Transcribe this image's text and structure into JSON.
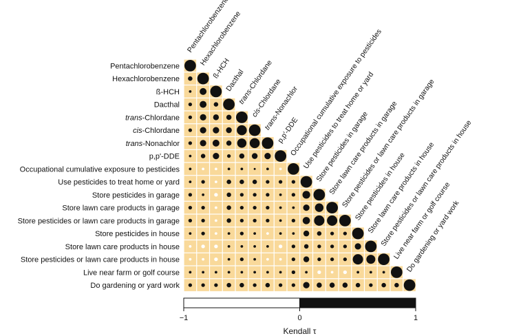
{
  "chart_data": {
    "type": "correlation-matrix",
    "layout": "lower-triangle",
    "variables": [
      "Pentachlorobenzene",
      "Hexachlorobenzene",
      "ß-HCH",
      "Dacthal",
      "trans-Chlordane",
      "cis-Chlordane",
      "trans-Nonachlor",
      "p,p'-DDE",
      "Occupational cumulative exposure to pesticides",
      "Use pesticides to treat home or yard",
      "Store pesticides in garage",
      "Store lawn care products in garage",
      "Store pesticides or lawn care products in garage",
      "Store pesticides in house",
      "Store lawn care products in house",
      "Store pesticides or lawn care products in house",
      "Live near farm or golf course",
      "Do gardening or yard work"
    ],
    "italic_prefixes": [
      "",
      "",
      "",
      "",
      "trans",
      "cis",
      "trans",
      "",
      "",
      "",
      "",
      "",
      "",
      "",
      "",
      "",
      "",
      ""
    ],
    "column_labels": [
      "Pentachlorobenzene",
      "Hexachlorobenzene",
      "ß-HCH",
      "Dacthal",
      "trans-Chlordane",
      "cis-Chlordane",
      "trans-Nonachlor",
      "p,p'-DDE",
      "Occupational cumulative exposure to pesticides",
      "Use pesticides to treat home or yard",
      "Store pesticides in garage",
      "Store lawn care products in garage",
      "Store pesticides or lawn care products in garage",
      "Store pesticides in house",
      "Store lawn care products in house",
      "Store pesticides or lawn care products in house",
      "Live near farm or golf course",
      "Do gardening or yard work"
    ],
    "tau_lower_triangle": [
      [
        1.0
      ],
      [
        0.15,
        1.0
      ],
      [
        0.05,
        0.35,
        1.0
      ],
      [
        0.1,
        0.35,
        0.15,
        1.0
      ],
      [
        0.1,
        0.3,
        0.25,
        0.2,
        1.0
      ],
      [
        0.1,
        0.3,
        0.3,
        0.25,
        0.75,
        1.0
      ],
      [
        0.1,
        0.3,
        0.35,
        0.2,
        0.65,
        0.75,
        1.0
      ],
      [
        0.05,
        0.15,
        0.3,
        0.1,
        0.2,
        0.25,
        0.3,
        1.0
      ],
      [
        0.05,
        -0.05,
        -0.05,
        0.05,
        0.05,
        0.03,
        0.05,
        -0.05,
        1.0
      ],
      [
        0.05,
        0.1,
        -0.05,
        0.15,
        0.15,
        0.15,
        0.1,
        0.1,
        0.1,
        1.0
      ],
      [
        0.1,
        0.05,
        -0.1,
        0.15,
        0.1,
        0.1,
        0.1,
        0.05,
        0.1,
        0.45,
        1.0
      ],
      [
        0.1,
        0.1,
        -0.05,
        0.15,
        0.1,
        0.1,
        0.1,
        0.05,
        0.05,
        0.3,
        0.55,
        1.0
      ],
      [
        0.1,
        0.1,
        -0.05,
        0.15,
        0.1,
        0.1,
        0.1,
        0.05,
        0.1,
        0.4,
        0.8,
        0.8,
        1.0
      ],
      [
        0.05,
        0.1,
        -0.05,
        0.05,
        0.1,
        0.05,
        -0.05,
        0.05,
        0.05,
        0.25,
        0.15,
        0.1,
        0.1,
        1.0
      ],
      [
        -0.05,
        -0.1,
        -0.1,
        0.05,
        0.05,
        0.05,
        0.05,
        -0.1,
        0.1,
        0.15,
        0.1,
        0.1,
        0.1,
        0.3,
        1.0
      ],
      [
        -0.05,
        -0.05,
        -0.1,
        0.05,
        0.1,
        0.05,
        -0.05,
        -0.05,
        0.1,
        0.25,
        0.1,
        0.1,
        0.1,
        0.8,
        0.6,
        1.0
      ],
      [
        0.05,
        0.05,
        0.05,
        0.05,
        0.05,
        0.05,
        0.05,
        0.05,
        0.1,
        0.05,
        -0.1,
        -0.05,
        -0.1,
        0.05,
        0.05,
        0.05,
        1.0
      ],
      [
        0.1,
        0.1,
        0.1,
        0.15,
        0.15,
        0.1,
        0.15,
        0.1,
        0.1,
        0.3,
        0.2,
        0.2,
        0.2,
        0.15,
        0.1,
        0.15,
        0.15,
        1.0
      ]
    ],
    "colorbar": {
      "range": [
        -1,
        1
      ],
      "ticks": [
        -1,
        0,
        1
      ],
      "tick_labels": [
        "−1",
        "0",
        "1"
      ],
      "label": "Kendall τ",
      "negative_color": "#ffffff",
      "positive_color": "#111111"
    },
    "cell_color": "#f9d99a",
    "positive_dot_color": "#111111",
    "negative_dot_color": "#ffffff"
  }
}
